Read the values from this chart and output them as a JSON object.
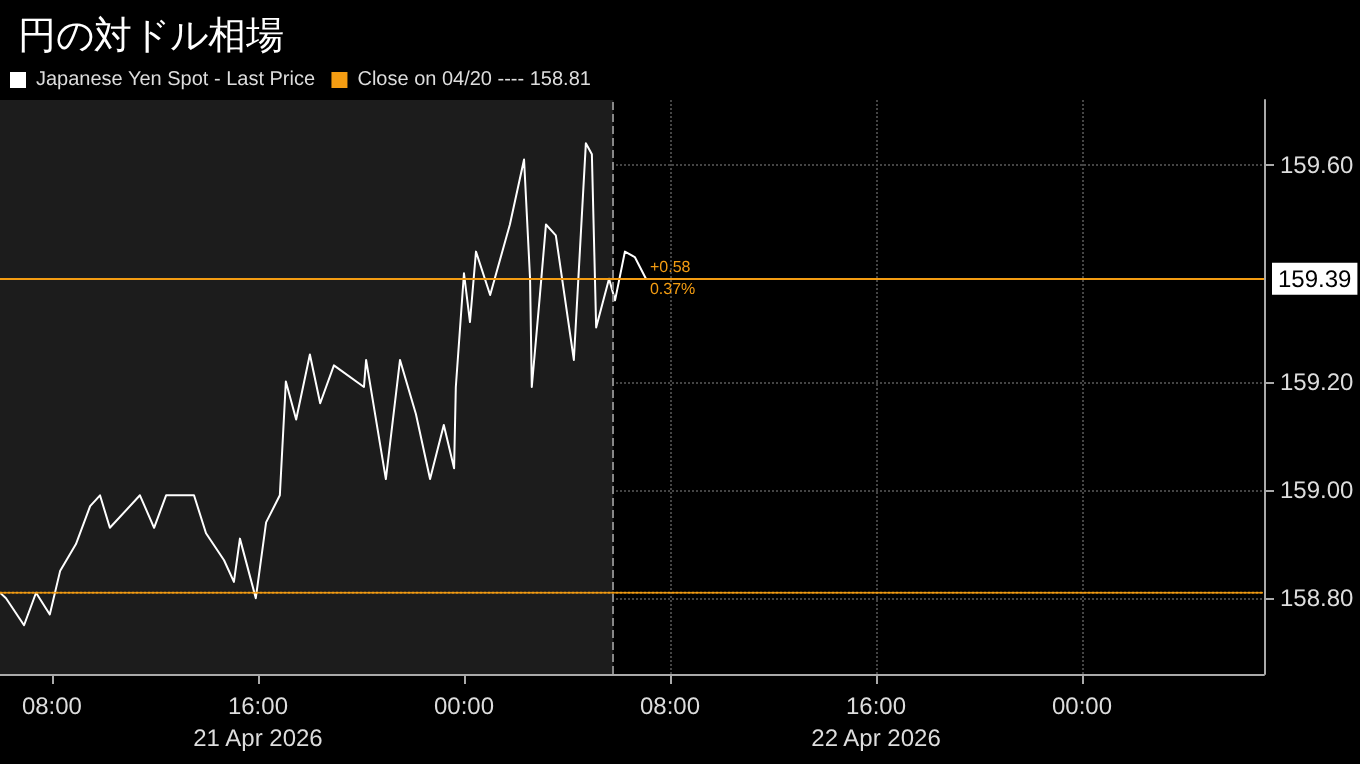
{
  "chart_data": {
    "type": "line",
    "title": "円の対ドル相場",
    "legend": "top left",
    "grid": true,
    "line_style": "solid",
    "marker": "none",
    "xlim": [
      "2026-04-21T05:59",
      "2026-04-23T07:04"
    ],
    "ylim": [
      158.66,
      159.72
    ],
    "xticks": [
      {
        "value": "2026-04-21T08:00",
        "label": "08:00"
      },
      {
        "value": "2026-04-21T16:00",
        "label": "16:00\n21 Apr 2026"
      },
      {
        "value": "2026-04-22T00:00",
        "label": "00:00"
      },
      {
        "value": "2026-04-22T08:00",
        "label": "08:00"
      },
      {
        "value": "2026-04-22T16:00",
        "label": "16:00\n22 Apr 2026"
      },
      {
        "value": "2026-04-23T00:00",
        "label": "00:00"
      }
    ],
    "yticks": [
      {
        "value": 158.8,
        "label": "158.80"
      },
      {
        "value": 159.0,
        "label": "159.00"
      },
      {
        "value": 159.2,
        "label": "159.20"
      },
      {
        "value": 159.6,
        "label": "159.60"
      }
    ],
    "series": [
      {
        "name": "Japanese Yen Spot - Last Price",
        "color": "#ffffff",
        "x": [
          "2026-04-21T05:59",
          "2026-04-21T06:13",
          "2026-04-21T06:55",
          "2026-04-21T07:23",
          "2026-04-21T07:55",
          "2026-04-21T08:19",
          "2026-04-21T08:56",
          "2026-04-21T09:29",
          "2026-04-21T09:52",
          "2026-04-21T10:15",
          "2026-04-21T11:25",
          "2026-04-21T11:58",
          "2026-04-21T12:26",
          "2026-04-21T13:31",
          "2026-04-21T13:59",
          "2026-04-21T14:41",
          "2026-04-21T15:04",
          "2026-04-21T15:18",
          "2026-04-21T15:55",
          "2026-04-21T16:19",
          "2026-04-21T16:51",
          "2026-04-21T17:05",
          "2026-04-21T17:29",
          "2026-04-21T18:01",
          "2026-04-21T18:25",
          "2026-04-21T18:57",
          "2026-04-21T20:07",
          "2026-04-21T20:12",
          "2026-04-21T20:58",
          "2026-04-21T21:31",
          "2026-04-21T22:08",
          "2026-04-21T22:41",
          "2026-04-21T23:13",
          "2026-04-21T23:37",
          "2026-04-21T23:41",
          "2026-04-22T00:00",
          "2026-04-22T00:14",
          "2026-04-22T00:28",
          "2026-04-22T01:01",
          "2026-04-22T01:47",
          "2026-04-22T02:20",
          "2026-04-22T02:34",
          "2026-04-22T02:38",
          "2026-04-22T02:57",
          "2026-04-22T03:11",
          "2026-04-22T03:34",
          "2026-04-22T04:16",
          "2026-04-22T04:30",
          "2026-04-22T04:44",
          "2026-04-22T04:58",
          "2026-04-22T05:08",
          "2026-04-22T05:38",
          "2026-04-22T05:52",
          "2026-04-22T06:15",
          "2026-04-22T06:38",
          "2026-04-22T07:04"
        ],
        "values": [
          158.81,
          158.8,
          158.75,
          158.81,
          158.77,
          158.85,
          158.9,
          158.97,
          158.99,
          158.93,
          158.99,
          158.93,
          158.99,
          158.99,
          158.92,
          158.87,
          158.83,
          158.91,
          158.8,
          158.94,
          158.99,
          159.2,
          159.13,
          159.25,
          159.16,
          159.23,
          159.19,
          159.24,
          159.02,
          159.24,
          159.14,
          159.02,
          159.12,
          159.04,
          159.19,
          159.4,
          159.31,
          159.44,
          159.36,
          159.49,
          159.61,
          159.39,
          159.19,
          159.36,
          159.49,
          159.47,
          159.24,
          159.44,
          159.64,
          159.62,
          159.3,
          159.39,
          159.35,
          159.44,
          159.43,
          159.39
        ]
      },
      {
        "name": "Close on 04/20 ---- 158.81",
        "color": "#f39c12",
        "line_style": "dotted",
        "x": [
          "2026-04-21T05:59",
          "2026-04-23T07:04"
        ],
        "values": [
          158.81,
          158.81
        ]
      }
    ],
    "ref_lines": [
      {
        "axis": "y",
        "value": 159.39,
        "label": "159.39",
        "color": "#f39c12",
        "line_style": "solid"
      },
      {
        "axis": "x",
        "value": "2026-04-22T05:48",
        "color": "#888888",
        "line_style": "dashed"
      }
    ],
    "bands": [
      {
        "axis": "x",
        "from": "2026-04-21T05:59",
        "to": "2026-04-22T05:48",
        "color": "#1c1c1c"
      }
    ],
    "annotations": [
      {
        "text": "+0.58",
        "x": "2026-04-22T07:04",
        "y": 159.39
      },
      "0.37%"
    ]
  }
}
